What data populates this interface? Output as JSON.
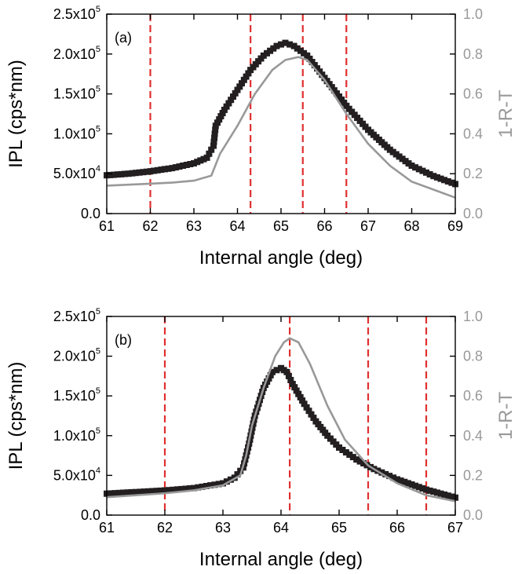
{
  "colors": {
    "ipl_series": "#231f20",
    "rt_series": "#999999",
    "right_axis": "#999999",
    "marker_lines": "#e03030",
    "frame": "#000000"
  },
  "chart_data": [
    {
      "type": "scatter",
      "panel_label": "(a)",
      "xlabel": "Internal angle (deg)",
      "ylabel": "IPL (cps*nm)",
      "y2label": "1-R-T",
      "xlim": [
        61,
        69
      ],
      "ylim": [
        0,
        250000
      ],
      "y2lim": [
        0,
        1
      ],
      "grid": false,
      "x_ticks": [
        61,
        62,
        63,
        64,
        65,
        66,
        67,
        68,
        69
      ],
      "y_ticks": [
        {
          "base": "0.0",
          "exp": ""
        },
        {
          "base": "5.0x10",
          "exp": "4"
        },
        {
          "base": "1.0x10",
          "exp": "5"
        },
        {
          "base": "1.5x10",
          "exp": "5"
        },
        {
          "base": "2.0x10",
          "exp": "5"
        },
        {
          "base": "2.5x10",
          "exp": "5"
        }
      ],
      "y2_ticks": [
        "0.0",
        "0.2",
        "0.4",
        "0.6",
        "0.8",
        "1.0"
      ],
      "vlines": [
        62.0,
        64.3,
        65.5,
        66.5
      ],
      "series": [
        {
          "axis": "left",
          "style": "square-markers",
          "x": [
            61.0,
            61.5,
            62.0,
            62.5,
            63.0,
            63.3,
            63.45,
            63.5,
            63.7,
            64.0,
            64.3,
            64.6,
            64.9,
            65.1,
            65.3,
            65.6,
            66.0,
            66.5,
            67.0,
            67.5,
            68.0,
            68.5,
            69.0
          ],
          "y": [
            48000,
            50000,
            53000,
            57000,
            63000,
            70000,
            85000,
            110000,
            130000,
            155000,
            180000,
            198000,
            210000,
            214000,
            210000,
            198000,
            170000,
            135000,
            105000,
            80000,
            60000,
            47000,
            37000
          ]
        },
        {
          "axis": "right",
          "style": "line",
          "x": [
            61.0,
            61.5,
            62.0,
            62.5,
            63.0,
            63.4,
            63.6,
            64.0,
            64.4,
            64.8,
            65.1,
            65.4,
            65.6,
            66.0,
            66.5,
            67.0,
            67.5,
            68.0,
            68.5,
            69.0
          ],
          "y": [
            0.14,
            0.145,
            0.15,
            0.155,
            0.165,
            0.19,
            0.3,
            0.44,
            0.6,
            0.72,
            0.77,
            0.785,
            0.77,
            0.67,
            0.5,
            0.35,
            0.24,
            0.16,
            0.12,
            0.08
          ]
        }
      ]
    },
    {
      "type": "scatter",
      "panel_label": "(b)",
      "xlabel": "Internal angle (deg)",
      "ylabel": "IPL (cps*nm)",
      "y2label": "1-R-T",
      "xlim": [
        61,
        67
      ],
      "ylim": [
        0,
        250000
      ],
      "y2lim": [
        0,
        1
      ],
      "grid": false,
      "x_ticks": [
        61,
        62,
        63,
        64,
        65,
        66,
        67
      ],
      "y_ticks": [
        {
          "base": "0.0",
          "exp": ""
        },
        {
          "base": "5.0x10",
          "exp": "4"
        },
        {
          "base": "1.0x10",
          "exp": "5"
        },
        {
          "base": "1.5x10",
          "exp": "5"
        },
        {
          "base": "2.0x10",
          "exp": "5"
        },
        {
          "base": "2.5x10",
          "exp": "5"
        }
      ],
      "y2_ticks": [
        "0.0",
        "0.2",
        "0.4",
        "0.6",
        "0.8",
        "1.0"
      ],
      "vlines": [
        62.0,
        64.15,
        65.5,
        66.5
      ],
      "series": [
        {
          "axis": "left",
          "style": "square-markers",
          "x": [
            61.0,
            61.5,
            62.0,
            62.5,
            63.0,
            63.2,
            63.35,
            63.45,
            63.55,
            63.7,
            63.85,
            64.0,
            64.1,
            64.2,
            64.4,
            64.6,
            64.8,
            65.0,
            65.3,
            65.6,
            66.0,
            66.5,
            67.0
          ],
          "y": [
            27000,
            29000,
            31000,
            34000,
            40000,
            47000,
            60000,
            90000,
            125000,
            160000,
            180000,
            185000,
            180000,
            165000,
            140000,
            118000,
            100000,
            85000,
            70000,
            58000,
            45000,
            32000,
            22000
          ]
        },
        {
          "axis": "right",
          "style": "line",
          "x": [
            61.0,
            61.5,
            62.0,
            62.5,
            63.0,
            63.3,
            63.4,
            63.5,
            63.7,
            63.9,
            64.05,
            64.15,
            64.3,
            64.5,
            64.8,
            65.1,
            65.5,
            66.0,
            66.5,
            67.0
          ],
          "y": [
            0.09,
            0.1,
            0.11,
            0.125,
            0.15,
            0.2,
            0.3,
            0.45,
            0.64,
            0.8,
            0.87,
            0.89,
            0.87,
            0.76,
            0.55,
            0.38,
            0.25,
            0.16,
            0.1,
            0.07
          ]
        }
      ]
    }
  ]
}
